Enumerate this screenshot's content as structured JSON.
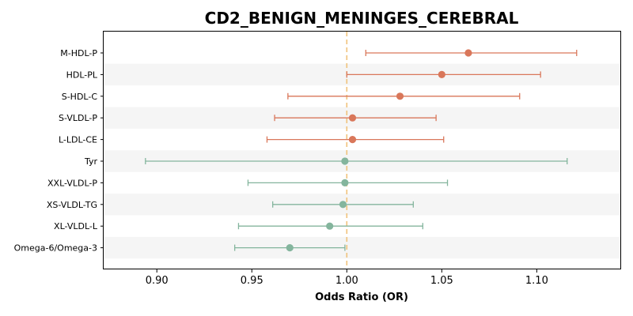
{
  "chart_data": {
    "type": "forest",
    "title": "CD2_BENIGN_MENINGES_CEREBRAL",
    "xlabel": "Odds Ratio (OR)",
    "ylabel": "",
    "xlim": [
      0.872,
      1.144
    ],
    "x_ticks": [
      "0.90",
      "0.95",
      "1.00",
      "1.05",
      "1.10"
    ],
    "reference_line": 1.0,
    "reference_color": "#f0c27b",
    "band_color": "#f5f5f5",
    "series_colors": {
      "positive": "#d9775a",
      "negative": "#84b59d"
    },
    "rows": [
      {
        "label": "M-HDL-P",
        "or": 1.064,
        "lo": 1.01,
        "hi": 1.121,
        "group": "positive"
      },
      {
        "label": "HDL-PL",
        "or": 1.05,
        "lo": 1.0,
        "hi": 1.102,
        "group": "positive"
      },
      {
        "label": "S-HDL-C",
        "or": 1.028,
        "lo": 0.969,
        "hi": 1.091,
        "group": "positive"
      },
      {
        "label": "S-VLDL-P",
        "or": 1.003,
        "lo": 0.962,
        "hi": 1.047,
        "group": "positive"
      },
      {
        "label": "L-LDL-CE",
        "or": 1.003,
        "lo": 0.958,
        "hi": 1.051,
        "group": "positive"
      },
      {
        "label": "Tyr",
        "or": 0.999,
        "lo": 0.894,
        "hi": 1.116,
        "group": "negative"
      },
      {
        "label": "XXL-VLDL-P",
        "or": 0.999,
        "lo": 0.948,
        "hi": 1.053,
        "group": "negative"
      },
      {
        "label": "XS-VLDL-TG",
        "or": 0.998,
        "lo": 0.961,
        "hi": 1.035,
        "group": "negative"
      },
      {
        "label": "XL-VLDL-L",
        "or": 0.991,
        "lo": 0.943,
        "hi": 1.04,
        "group": "negative"
      },
      {
        "label": "Omega-6/Omega-3",
        "or": 0.97,
        "lo": 0.941,
        "hi": 0.999,
        "group": "negative"
      }
    ]
  }
}
